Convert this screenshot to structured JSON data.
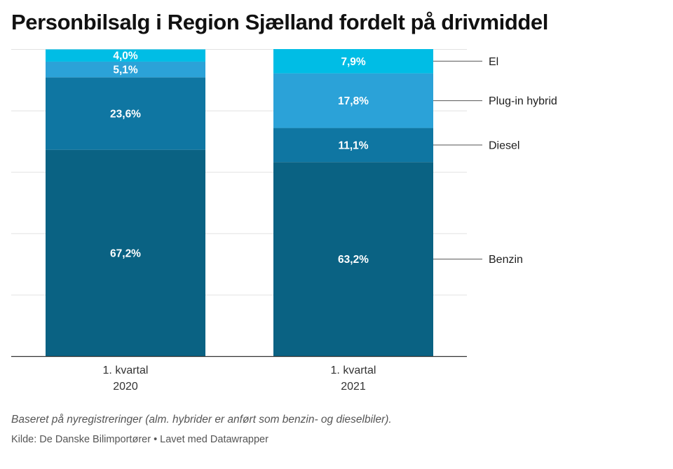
{
  "title": "Personbilsalg i Region Sjælland fordelt på drivmiddel",
  "notes": "Baseret på nyregistreringer (alm. hybrider er anført som benzin- og dieselbiler).",
  "source": "Kilde: De Danske Bilimportører • Lavet med Datawrapper",
  "chart_data": {
    "type": "bar",
    "stacked": true,
    "categories": [
      [
        "1. kvartal",
        "2020"
      ],
      [
        "1. kvartal",
        "2021"
      ]
    ],
    "series": [
      {
        "name": "Benzin",
        "values": [
          67.2,
          63.2
        ],
        "labels": [
          "67,2%",
          "63,2%"
        ],
        "color": "#0a6283"
      },
      {
        "name": "Diesel",
        "values": [
          23.6,
          11.1
        ],
        "labels": [
          "23,6%",
          "11,1%"
        ],
        "color": "#0f76a2"
      },
      {
        "name": "Plug-in hybrid",
        "values": [
          5.1,
          17.8
        ],
        "labels": [
          "5,1%",
          "17,8%"
        ],
        "color": "#2ba2d8"
      },
      {
        "name": "El",
        "values": [
          4.0,
          7.9
        ],
        "labels": [
          "4,0%",
          "7,9%"
        ],
        "color": "#00bde5"
      }
    ],
    "ylim": [
      0,
      100
    ],
    "grid": true,
    "legend_position": "right, aligned to last bar"
  }
}
